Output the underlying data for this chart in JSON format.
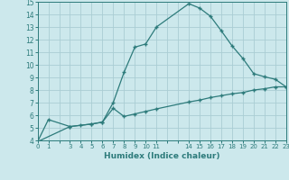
{
  "title": "",
  "xlabel": "Humidex (Indice chaleur)",
  "background_color": "#cce8ec",
  "grid_color": "#aacdd4",
  "line_color": "#2d7b7b",
  "xlim": [
    0,
    23
  ],
  "ylim": [
    4,
    15
  ],
  "xticks": [
    0,
    1,
    2,
    3,
    4,
    5,
    6,
    7,
    8,
    9,
    10,
    11,
    12,
    13,
    14,
    15,
    16,
    17,
    18,
    19,
    20,
    21,
    22,
    23
  ],
  "xtick_labels": [
    "0",
    "1",
    "",
    "3",
    "4",
    "5",
    "6",
    "7",
    "8",
    "9",
    "10",
    "11",
    "",
    "",
    "14",
    "15",
    "16",
    "17",
    "18",
    "19",
    "20",
    "21",
    "22",
    "23"
  ],
  "yticks": [
    4,
    5,
    6,
    7,
    8,
    9,
    10,
    11,
    12,
    13,
    14,
    15
  ],
  "line1_x": [
    0,
    1,
    3,
    4,
    5,
    6,
    7,
    8,
    9,
    10,
    11,
    14,
    15,
    16,
    17,
    18,
    19,
    20,
    21,
    22,
    23
  ],
  "line1_y": [
    3.9,
    5.65,
    5.1,
    5.2,
    5.3,
    5.45,
    7.0,
    9.4,
    11.4,
    11.65,
    13.0,
    14.85,
    14.5,
    13.85,
    12.7,
    11.5,
    10.5,
    9.3,
    9.05,
    8.85,
    8.25
  ],
  "line2_x": [
    0,
    3,
    5,
    6,
    7,
    8,
    9,
    10,
    11,
    14,
    15,
    16,
    17,
    18,
    19,
    20,
    21,
    22,
    23
  ],
  "line2_y": [
    3.9,
    5.1,
    5.3,
    5.45,
    6.55,
    5.9,
    6.1,
    6.3,
    6.5,
    7.05,
    7.2,
    7.4,
    7.55,
    7.7,
    7.8,
    8.0,
    8.1,
    8.25,
    8.25
  ]
}
